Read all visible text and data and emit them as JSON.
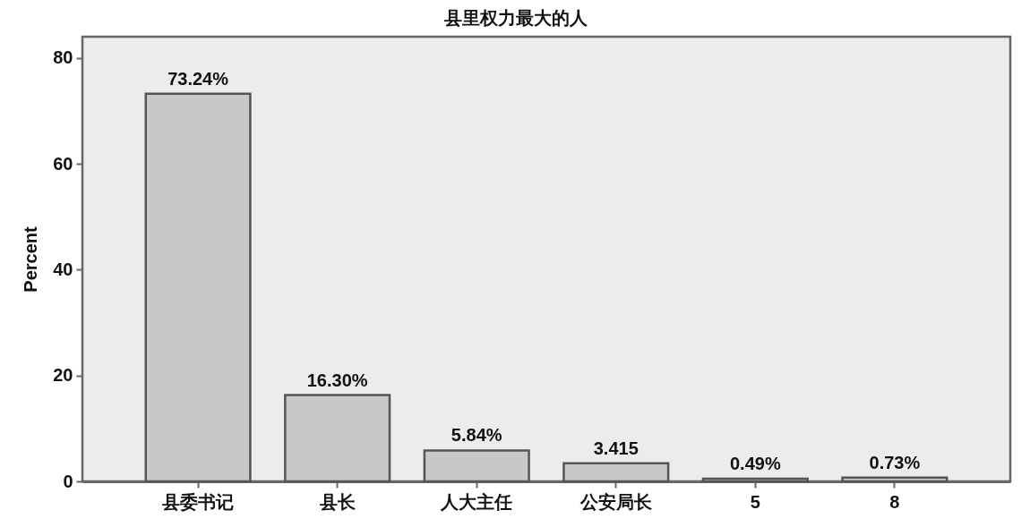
{
  "chart_data": {
    "type": "bar",
    "title": "县里权力最大的人",
    "ylabel": "Percent",
    "categories": [
      "县委书记",
      "县长",
      "人大主任",
      "公安局长",
      "5",
      "8"
    ],
    "values": [
      73.24,
      16.3,
      5.84,
      3.415,
      0.49,
      0.73
    ],
    "value_labels": [
      "73.24%",
      "16.30%",
      "5.84%",
      "3.415",
      "0.49%",
      "0.73%"
    ],
    "color": "#c8c8c8",
    "ylim": [
      0,
      84
    ],
    "yticks": [
      0,
      20,
      40,
      60,
      80
    ],
    "grid": false
  }
}
